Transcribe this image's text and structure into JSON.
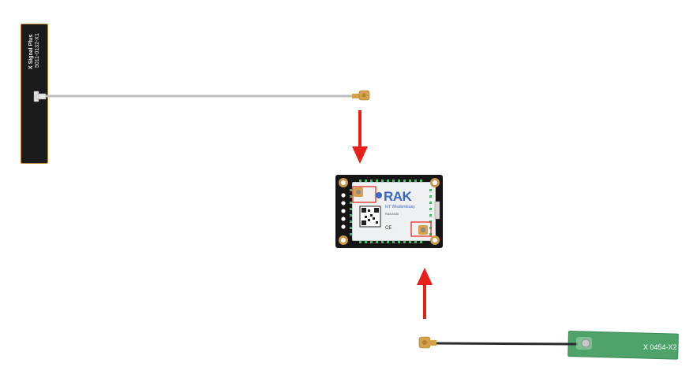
{
  "antenna_top": {
    "brand": "X Signal Plus",
    "part_number": "5011-0132-X1"
  },
  "antenna_bottom": {
    "part_number": "X 0454-X2"
  },
  "module": {
    "logo": "RAK",
    "tagline": "IoT  WisdomEasy",
    "model": "RAK4630",
    "mark": "CE"
  },
  "colors": {
    "arrow": "#e8201c",
    "cable_top": "#bfbfbf",
    "cable_bottom": "#2a2a2a",
    "connector": "#d4a24a",
    "antenna_top_body": "#1b1b1b",
    "antenna_bottom_body": "#4ea36a",
    "rak_blue": "#3a67c4",
    "board": "#151515"
  }
}
